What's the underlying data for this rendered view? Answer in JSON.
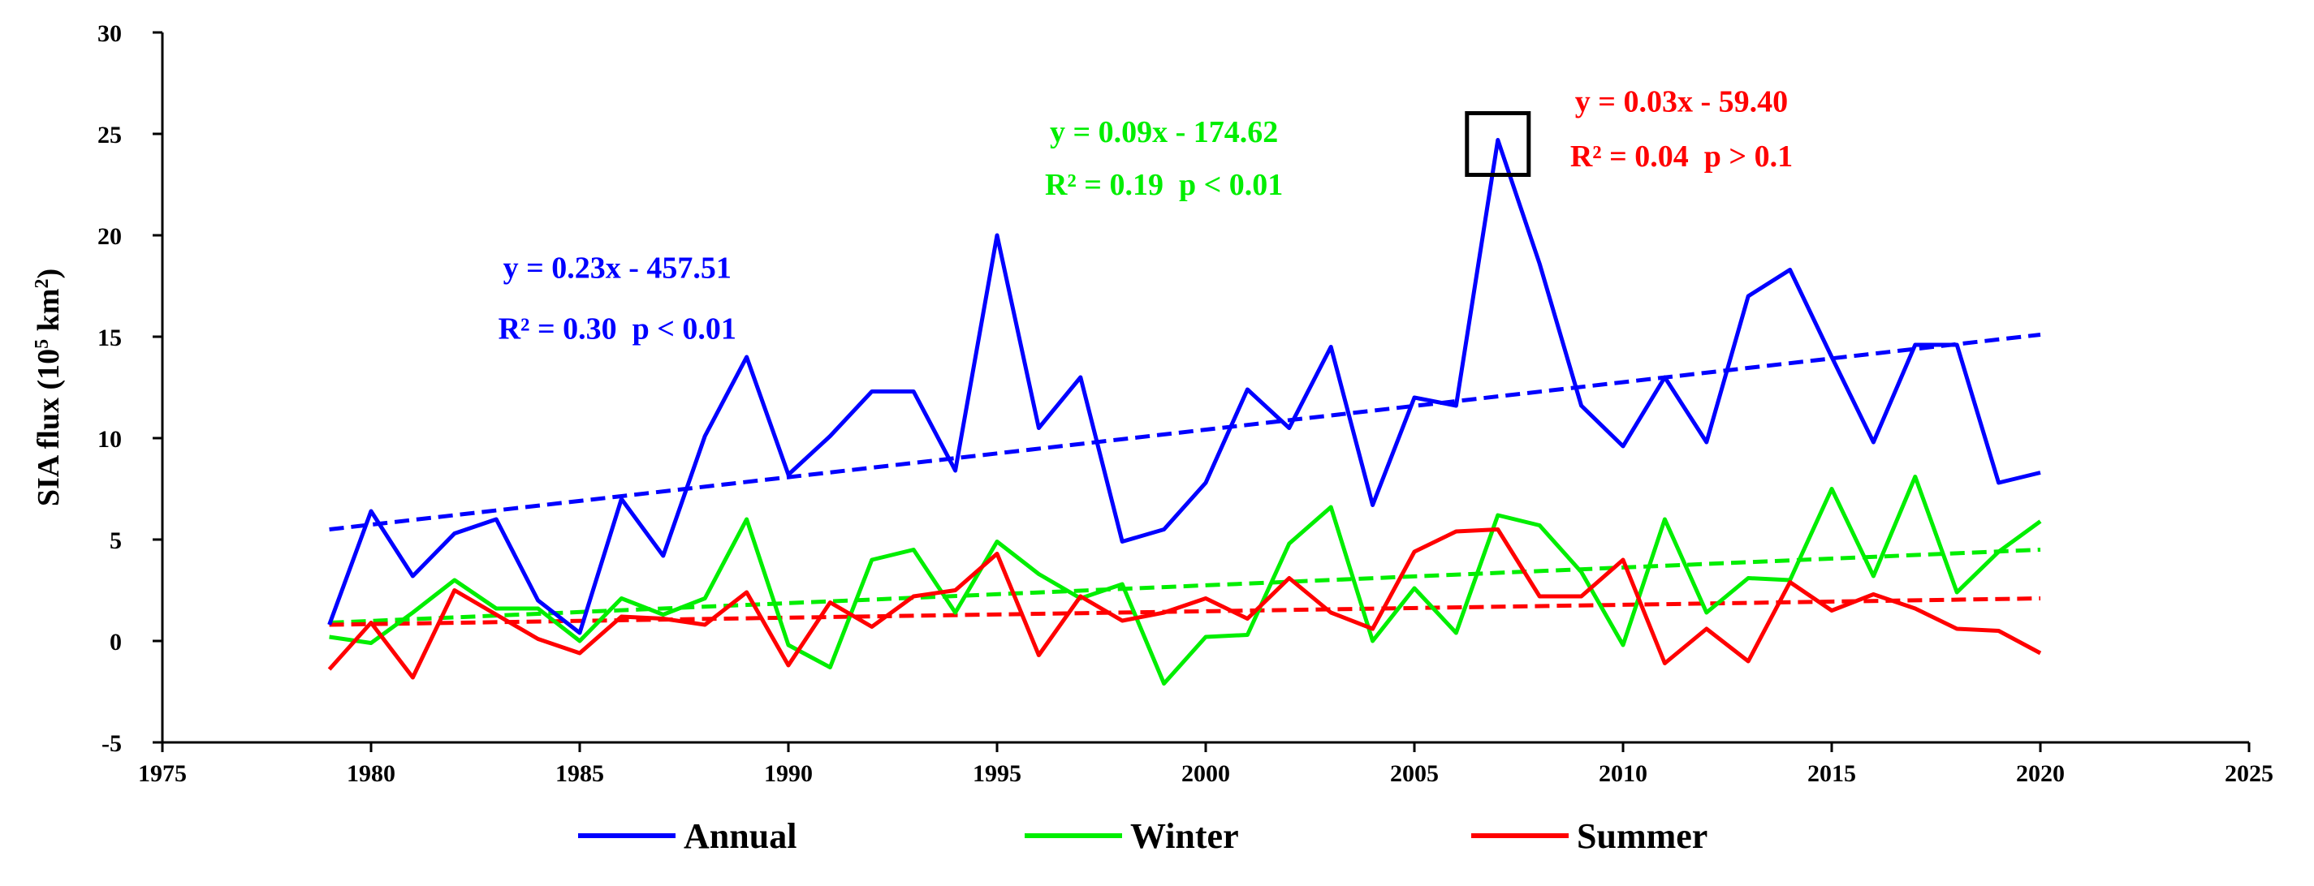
{
  "chart_data": {
    "type": "line",
    "ylabel": "SIA flux (10^5 km^2)",
    "xlim": [
      1975,
      2025
    ],
    "ylim": [
      -5,
      30
    ],
    "xticks": [
      "1975",
      "1980",
      "1985",
      "1990",
      "1995",
      "2000",
      "2005",
      "2010",
      "2015",
      "2020",
      "2025"
    ],
    "yticks": [
      "-5",
      "0",
      "5",
      "10",
      "15",
      "20",
      "25",
      "30"
    ],
    "grid": false,
    "legend_position": "bottom",
    "x": [
      1979,
      1980,
      1981,
      1982,
      1983,
      1984,
      1985,
      1986,
      1987,
      1988,
      1989,
      1990,
      1991,
      1992,
      1993,
      1994,
      1995,
      1996,
      1997,
      1998,
      1999,
      2000,
      2001,
      2002,
      2003,
      2004,
      2005,
      2006,
      2007,
      2008,
      2009,
      2010,
      2011,
      2012,
      2013,
      2014,
      2015,
      2016,
      2017,
      2018,
      2019,
      2020
    ],
    "series": [
      {
        "name": "Annual",
        "color": "#0000ff",
        "values": [
          0.8,
          6.4,
          3.2,
          5.3,
          6.0,
          2.0,
          0.4,
          7.0,
          4.2,
          10.1,
          14.0,
          8.2,
          10.1,
          12.3,
          12.3,
          8.4,
          20.0,
          10.5,
          13.0,
          4.9,
          5.5,
          7.8,
          12.4,
          10.5,
          14.5,
          6.7,
          12.0,
          11.6,
          24.7,
          18.6,
          11.6,
          9.6,
          13.0,
          9.8,
          17.0,
          18.3,
          14.0,
          9.8,
          14.6,
          14.6,
          7.8,
          8.3
        ],
        "trend": {
          "equation": "y = 0.23x - 457.51",
          "stats": "R² = 0.30  p < 0.01",
          "start": 5.5,
          "end": 15.1
        }
      },
      {
        "name": "Winter",
        "color": "#00ee00",
        "values": [
          0.2,
          -0.1,
          1.4,
          3.0,
          1.6,
          1.6,
          0.0,
          2.1,
          1.3,
          2.1,
          6.0,
          -0.2,
          -1.3,
          4.0,
          4.5,
          1.4,
          4.9,
          3.3,
          2.1,
          2.8,
          -2.1,
          0.2,
          0.3,
          4.8,
          6.6,
          0.0,
          2.6,
          0.4,
          6.2,
          5.7,
          3.4,
          -0.2,
          6.0,
          1.4,
          3.1,
          3.0,
          7.5,
          3.2,
          8.1,
          2.4,
          4.4,
          5.9
        ],
        "trend": {
          "equation": "y = 0.09x - 174.62",
          "stats": "R² = 0.19  p < 0.01",
          "start": 0.9,
          "end": 4.5
        }
      },
      {
        "name": "Summer",
        "color": "#ff0000",
        "values": [
          -1.4,
          0.9,
          -1.8,
          2.5,
          1.3,
          0.1,
          -0.6,
          1.2,
          1.1,
          0.8,
          2.4,
          -1.2,
          1.9,
          0.7,
          2.2,
          2.5,
          4.3,
          -0.7,
          2.2,
          1.0,
          1.4,
          2.1,
          1.1,
          3.1,
          1.4,
          0.6,
          4.4,
          5.4,
          5.5,
          2.2,
          2.2,
          4.0,
          -1.1,
          0.6,
          -1.0,
          2.9,
          1.5,
          2.3,
          1.6,
          0.6,
          0.5,
          -0.6
        ],
        "trend": {
          "equation": "y = 0.03x - 59.40",
          "stats": "R² = 0.04  p > 0.1",
          "start": 0.8,
          "end": 2.1
        }
      }
    ],
    "highlight_box": {
      "x": 2007,
      "y": 24.5
    }
  }
}
